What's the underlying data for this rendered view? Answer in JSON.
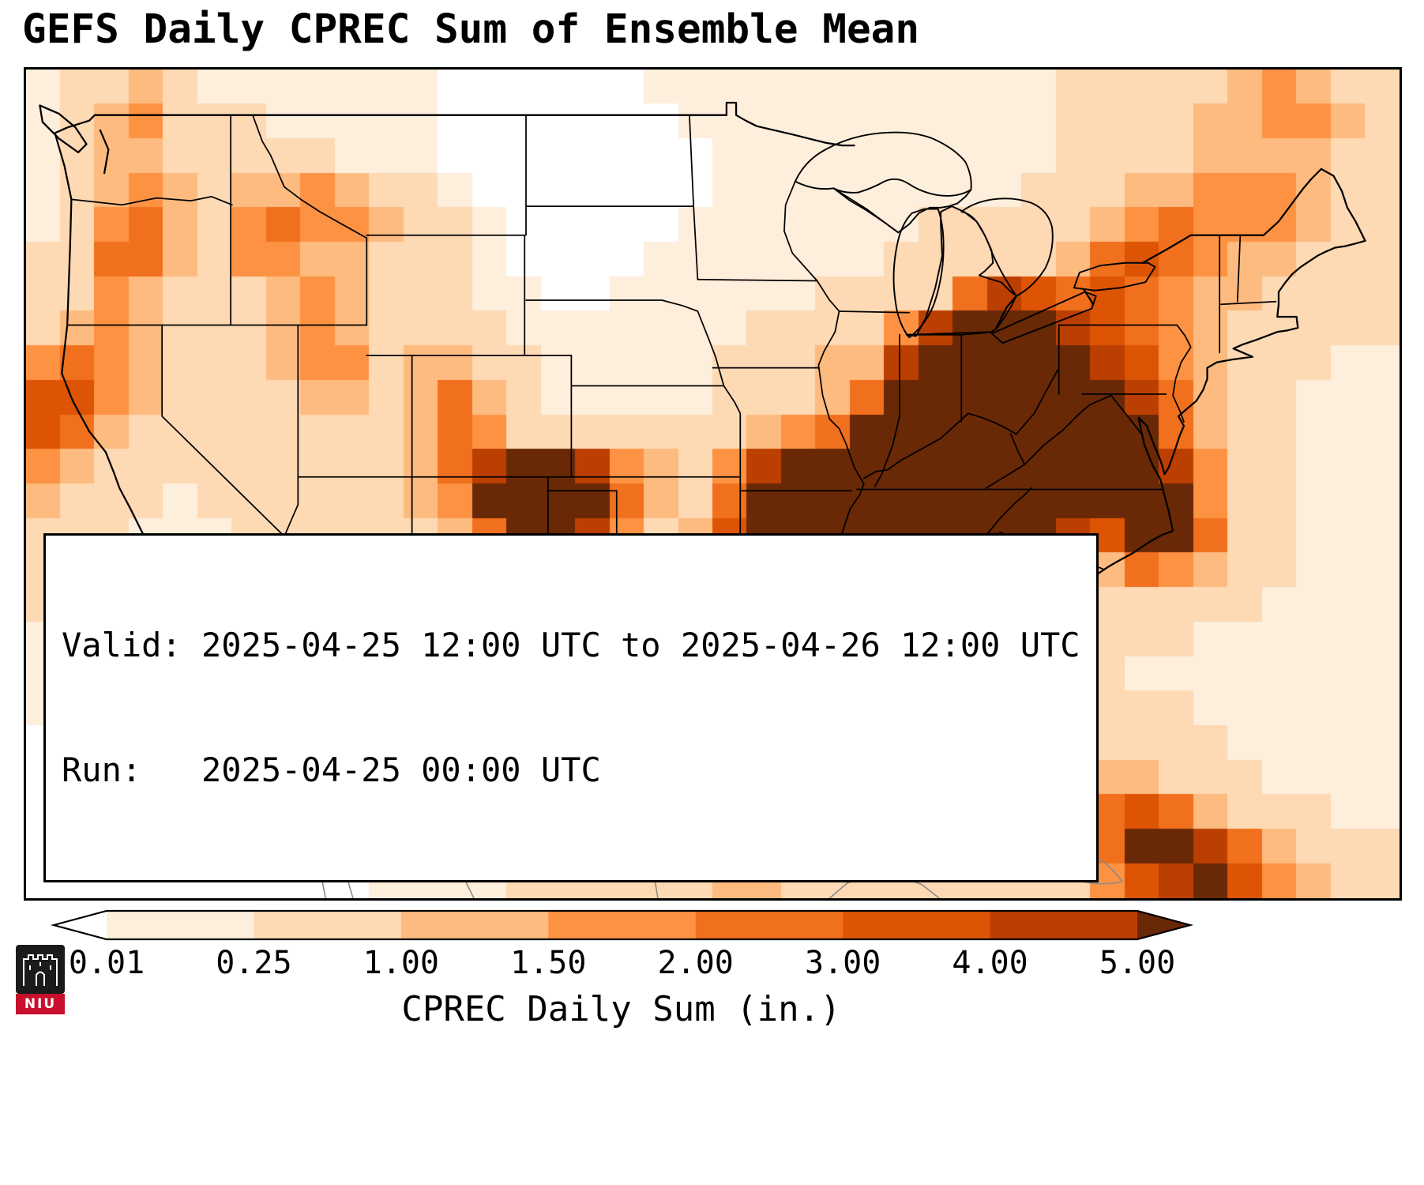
{
  "title": "GEFS Daily CPREC Sum of Ensemble Mean",
  "info_box": {
    "line1": "Valid: 2025-04-25 12:00 UTC to 2025-04-26 12:00 UTC",
    "line2": "Run:   2025-04-25 00:00 UTC"
  },
  "colorbar": {
    "label": "CPREC Daily Sum (in.)",
    "ticks": [
      "0.01",
      "0.25",
      "1.00",
      "1.50",
      "2.00",
      "3.00",
      "4.00",
      "5.00"
    ]
  },
  "logo": {
    "text": "NIU",
    "icon": "castle-icon",
    "red": "#c8102e"
  },
  "chart_data": {
    "type": "heatmap",
    "title": "GEFS Daily CPREC Sum of Ensemble Mean",
    "valid_period": "2025-04-25 12:00 UTC to 2025-04-26 12:00 UTC",
    "run": "2025-04-25 00:00 UTC",
    "variable": "CPREC Daily Sum",
    "units": "in.",
    "colorbar_label": "CPREC Daily Sum (in.)",
    "colorbar_ticks": [
      0.01,
      0.25,
      1.0,
      1.5,
      2.0,
      3.0,
      4.0,
      5.0
    ],
    "colorscale": {
      "bounds": [
        0.01,
        0.25,
        1.0,
        1.5,
        2.0,
        3.0,
        4.0,
        5.0
      ],
      "colors": [
        "#feeedc",
        "#fdd9b4",
        "#fdbb80",
        "#fd9243",
        "#f1701e",
        "#dd5405",
        "#bc3f02"
      ],
      "under": "#ffffff",
      "over": "#692806",
      "extend": "both"
    },
    "extent": {
      "lon_min": -126,
      "lon_max": -65.5,
      "lat_min": 21.3,
      "lat_max": 50.5
    },
    "grid": {
      "cols": 40,
      "rows": 24,
      "orientation": "row-major from northwest corner, values in inches",
      "values": [
        [
          0.1,
          0.3,
          0.6,
          1.3,
          0.6,
          0.1,
          0.1,
          0.1,
          0.1,
          0.1,
          0.1,
          0.1,
          0,
          0,
          0,
          0,
          0,
          0,
          0.1,
          0.1,
          0.1,
          0.1,
          0.1,
          0.1,
          0.1,
          0.1,
          0.1,
          0.1,
          0.1,
          0.1,
          0.3,
          0.3,
          0.3,
          0.6,
          0.6,
          1.3,
          1.8,
          1.3,
          0.6,
          0.6
        ],
        [
          0.1,
          0.3,
          1.3,
          1.8,
          0.6,
          0.3,
          0.3,
          0.1,
          0.1,
          0.1,
          0.1,
          0.1,
          0,
          0,
          0,
          0,
          0,
          0,
          0,
          0.1,
          0.1,
          0.1,
          0.1,
          0.1,
          0.1,
          0.1,
          0.1,
          0.1,
          0.1,
          0.1,
          0.3,
          0.3,
          0.3,
          0.6,
          1.3,
          1.3,
          1.8,
          1.8,
          1.3,
          0.6
        ],
        [
          0.1,
          0.6,
          1.3,
          1.3,
          0.6,
          0.3,
          0.6,
          0.6,
          0.3,
          0.1,
          0.1,
          0.1,
          0,
          0,
          0,
          0,
          0,
          0,
          0,
          0,
          0.1,
          0.1,
          0.1,
          0.1,
          0.1,
          0.1,
          0.1,
          0.1,
          0.1,
          0.1,
          0.3,
          0.3,
          0.6,
          0.6,
          1.3,
          1.3,
          1.3,
          1.3,
          0.6,
          0.3
        ],
        [
          0.1,
          0.3,
          1.3,
          1.8,
          1.3,
          0.6,
          1.3,
          1.3,
          1.8,
          1.3,
          0.6,
          0.3,
          0.1,
          0,
          0,
          0,
          0,
          0,
          0,
          0,
          0.1,
          0.1,
          0.1,
          0.1,
          0.1,
          0.1,
          0.1,
          0.1,
          0.1,
          0.3,
          0.3,
          0.6,
          1.3,
          1.3,
          1.8,
          1.8,
          1.8,
          1.3,
          0.6,
          0.3
        ],
        [
          0.1,
          0.3,
          1.8,
          2.5,
          1.3,
          0.6,
          1.8,
          2.5,
          1.8,
          1.8,
          1.3,
          0.6,
          0.3,
          0.1,
          0,
          0,
          0,
          0,
          0,
          0.1,
          0.1,
          0.1,
          0.1,
          0.1,
          0.1,
          0.1,
          0.3,
          0.3,
          0.3,
          0.3,
          0.6,
          1.3,
          1.8,
          2.5,
          1.8,
          1.8,
          1.8,
          1.3,
          0.6,
          0.3
        ],
        [
          0.3,
          0.6,
          2.5,
          2.5,
          1.3,
          0.6,
          1.8,
          1.8,
          1.3,
          1.3,
          0.6,
          0.3,
          0.3,
          0.1,
          0,
          0,
          0,
          0,
          0.1,
          0.1,
          0.1,
          0.1,
          0.1,
          0.1,
          0.1,
          0.3,
          0.3,
          0.6,
          0.6,
          0.6,
          1.3,
          2.5,
          3.5,
          2.5,
          1.8,
          1.3,
          1.3,
          0.6,
          0.3,
          0.3
        ],
        [
          0.3,
          0.6,
          1.8,
          1.3,
          0.6,
          0.3,
          0.6,
          1.3,
          1.8,
          1.3,
          0.6,
          0.3,
          0.3,
          0.1,
          0.1,
          0,
          0,
          0.1,
          0.1,
          0.1,
          0.1,
          0.1,
          0.1,
          0.3,
          0.3,
          0.3,
          0.6,
          2.5,
          4.5,
          3.5,
          2.5,
          3.5,
          2.5,
          1.8,
          1.3,
          1.3,
          0.6,
          0.6,
          0.3,
          0.3
        ],
        [
          0.6,
          1.3,
          1.8,
          1.3,
          0.3,
          0.3,
          0.6,
          1.3,
          1.8,
          1.3,
          0.6,
          0.6,
          0.6,
          0.3,
          0.1,
          0.1,
          0.1,
          0.1,
          0.1,
          0.1,
          0.1,
          0.3,
          0.3,
          0.3,
          0.6,
          1.8,
          4.5,
          6,
          6,
          6,
          4.5,
          3.5,
          2.5,
          1.8,
          1.3,
          0.6,
          0.3,
          0.3,
          0.3,
          0.3
        ],
        [
          1.8,
          2.5,
          1.8,
          1.3,
          0.3,
          0.3,
          0.6,
          1.3,
          1.8,
          1.8,
          0.6,
          1.3,
          1.3,
          0.6,
          0.3,
          0.1,
          0.1,
          0.1,
          0.1,
          0.1,
          0.3,
          0.3,
          0.6,
          1.3,
          1.3,
          4.5,
          6,
          6,
          6,
          6,
          6,
          4.5,
          3.5,
          1.8,
          1.3,
          0.6,
          0.3,
          0.3,
          0.1,
          0.1
        ],
        [
          3.5,
          3.5,
          1.8,
          1.3,
          0.6,
          0.3,
          0.3,
          0.6,
          1.3,
          1.3,
          0.6,
          1.3,
          2.5,
          1.3,
          0.3,
          0.1,
          0.1,
          0.1,
          0.1,
          0.1,
          0.3,
          0.6,
          0.6,
          1.3,
          2.5,
          6,
          6,
          6,
          6,
          6,
          6,
          6,
          4.5,
          2.5,
          1.3,
          0.6,
          0.3,
          0.1,
          0.1,
          0.1
        ],
        [
          3.5,
          2.5,
          1.3,
          0.6,
          0.3,
          0.3,
          0.3,
          0.3,
          0.6,
          0.6,
          0.6,
          1.3,
          2.5,
          1.8,
          0.6,
          0.3,
          0.3,
          0.3,
          0.3,
          0.3,
          0.6,
          1.3,
          1.8,
          2.5,
          6,
          6,
          6,
          6,
          6,
          6,
          6,
          6,
          6,
          2.5,
          1.3,
          0.6,
          0.3,
          0.1,
          0.1,
          0.1
        ],
        [
          1.8,
          1.3,
          0.6,
          0.3,
          0.3,
          0.3,
          0.3,
          0.3,
          0.3,
          0.6,
          0.6,
          1.3,
          2.5,
          4.5,
          6,
          6,
          4.5,
          1.8,
          1.3,
          0.6,
          1.8,
          4.5,
          6,
          6,
          6,
          6,
          6,
          6,
          6,
          6,
          6,
          6,
          6,
          4.5,
          1.8,
          0.6,
          0.3,
          0.1,
          0.1,
          0.1
        ],
        [
          1.3,
          0.6,
          0.3,
          0.3,
          0.1,
          0.3,
          0.3,
          0.3,
          0.3,
          0.3,
          0.6,
          1.3,
          1.8,
          6,
          6,
          6,
          6,
          2.5,
          1.3,
          0.6,
          2.5,
          6,
          6,
          6,
          6,
          6,
          6,
          6,
          6,
          6,
          6,
          6,
          6,
          6,
          1.8,
          0.6,
          0.3,
          0.1,
          0.1,
          0.1
        ],
        [
          0.6,
          0.3,
          0.3,
          0.1,
          0.1,
          0.1,
          0.3,
          0.3,
          0.3,
          0.3,
          0.6,
          0.6,
          1.3,
          2.5,
          6,
          6,
          4.5,
          1.8,
          0.6,
          1.3,
          3.5,
          6,
          6,
          6,
          6,
          6,
          6,
          6,
          6,
          6,
          4.5,
          3.5,
          6,
          6,
          2.5,
          0.6,
          0.3,
          0.1,
          0.1,
          0.1
        ],
        [
          0.3,
          0.3,
          0.1,
          0.1,
          0.1,
          0.1,
          0.1,
          0.3,
          0.3,
          0.3,
          0.3,
          0.6,
          1.3,
          1.8,
          1.8,
          1.8,
          1.3,
          0.6,
          0.6,
          1.3,
          4.5,
          6,
          6,
          6,
          6,
          6,
          6,
          6,
          4.5,
          2.5,
          1.3,
          1.3,
          2.5,
          1.8,
          1.3,
          0.3,
          0.3,
          0.1,
          0.1,
          0.1
        ],
        [
          0.3,
          0.1,
          0.1,
          0.1,
          0.1,
          0.1,
          0.1,
          0.1,
          0.3,
          0.3,
          0.3,
          0.3,
          0.6,
          1.3,
          1.8,
          2.5,
          1.8,
          1.3,
          0.6,
          1.3,
          2.5,
          6,
          6,
          4.5,
          2.5,
          2.5,
          1.3,
          1.3,
          0.6,
          0.6,
          0.6,
          0.3,
          0.6,
          0.6,
          0.3,
          0.3,
          0.1,
          0.1,
          0.1,
          0.1
        ],
        [
          0.1,
          0.1,
          0.1,
          0.1,
          0.1,
          0,
          0.1,
          0.1,
          0.1,
          0.3,
          0.3,
          0.3,
          0.3,
          0.6,
          2.5,
          3.5,
          4.5,
          2.5,
          1.3,
          0.6,
          1.8,
          6,
          2.5,
          1.3,
          0.6,
          0.3,
          0.3,
          0.3,
          0.3,
          0.3,
          0.3,
          0.3,
          0.3,
          0.3,
          0.1,
          0.1,
          0.1,
          0.1,
          0.1,
          0.1
        ],
        [
          0.1,
          0.1,
          0.1,
          0,
          0,
          0,
          0.1,
          0.1,
          0.1,
          0.1,
          0.3,
          0.3,
          0.3,
          0.6,
          1.8,
          4.5,
          2.5,
          1.3,
          0.6,
          0.3,
          0.6,
          1.3,
          0.6,
          0.3,
          0.3,
          0.3,
          0.3,
          0.3,
          0.3,
          0.3,
          0.3,
          0.3,
          0.1,
          0.1,
          0.1,
          0.1,
          0.1,
          0.1,
          0.1,
          0.1
        ],
        [
          0.1,
          0,
          0,
          0,
          0,
          0,
          0,
          0.1,
          0.1,
          0.1,
          0.1,
          0.3,
          0.3,
          0.3,
          1.3,
          1.8,
          1.8,
          1.3,
          0.6,
          0.3,
          0.3,
          0.6,
          0.3,
          0.3,
          0.3,
          0.3,
          0.3,
          1.3,
          1.8,
          0.6,
          0.3,
          0.3,
          0.3,
          0.3,
          0.1,
          0.1,
          0.1,
          0.1,
          0.1,
          0.1
        ],
        [
          0,
          0,
          0,
          0,
          0,
          0,
          0,
          0.1,
          0.1,
          0.1,
          0.1,
          0.1,
          0.3,
          0.3,
          0.6,
          1.3,
          1.3,
          0.6,
          0.3,
          0.3,
          0.3,
          0.3,
          0.3,
          0.3,
          0.3,
          0.3,
          0.3,
          0.6,
          1.3,
          0.6,
          0.3,
          0.6,
          0.6,
          0.3,
          0.3,
          0.1,
          0.1,
          0.1,
          0.1,
          0.1
        ],
        [
          0,
          0,
          0,
          0,
          0,
          0,
          0,
          0,
          0.1,
          0.1,
          0.1,
          0.1,
          0.1,
          0.3,
          0.3,
          0.6,
          0.6,
          0.6,
          0.6,
          0.3,
          0.6,
          0.6,
          0.6,
          0.3,
          0.3,
          0.3,
          0.3,
          0.3,
          0.3,
          0.3,
          0.6,
          1.3,
          1.3,
          0.6,
          0.3,
          0.3,
          0.1,
          0.1,
          0.1,
          0.1
        ],
        [
          0,
          0,
          0,
          0,
          0,
          0,
          0,
          0,
          0,
          0.1,
          0.1,
          0.1,
          0.1,
          0.3,
          0.3,
          0.6,
          1.3,
          0.6,
          0.6,
          0.6,
          1.3,
          0.6,
          0.6,
          0.6,
          0.3,
          0.3,
          0.3,
          0.3,
          0.3,
          0.6,
          1.3,
          2.5,
          3.5,
          2.5,
          1.3,
          0.6,
          0.3,
          0.3,
          0.1,
          0.1
        ],
        [
          0,
          0,
          0,
          0,
          0,
          0,
          0,
          0,
          0,
          0,
          0.1,
          0.1,
          0.1,
          0.1,
          0.3,
          0.3,
          0.6,
          0.6,
          0.3,
          0.3,
          0.6,
          1.3,
          0.6,
          0.6,
          0.3,
          0.3,
          0.3,
          0.3,
          0.3,
          0.6,
          1.3,
          2.5,
          6,
          6,
          4.5,
          2.5,
          1.3,
          0.6,
          0.3,
          0.3
        ],
        [
          0,
          0,
          0,
          0,
          0,
          0,
          0,
          0,
          0,
          0,
          0.1,
          0.1,
          0.1,
          0.1,
          0.3,
          0.3,
          0.6,
          0.6,
          0.3,
          0.6,
          1.3,
          1.3,
          0.6,
          0.6,
          0.3,
          0.3,
          0.3,
          0.3,
          0.3,
          0.3,
          0.6,
          1.8,
          3.5,
          4.5,
          6,
          3.5,
          1.8,
          1.3,
          0.6,
          0.3
        ]
      ]
    }
  }
}
